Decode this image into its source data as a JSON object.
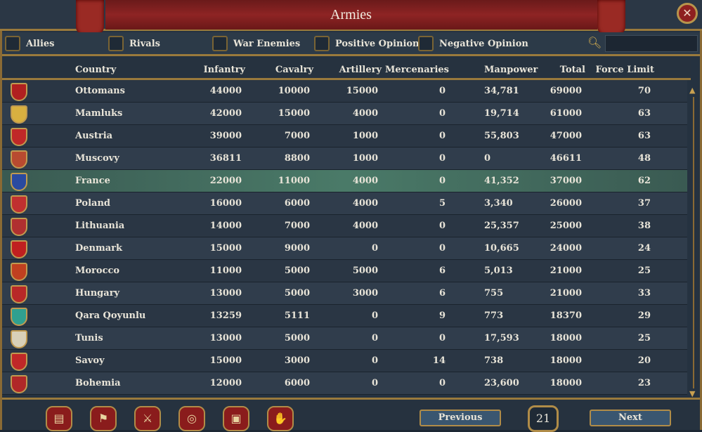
{
  "window": {
    "title": "Armies"
  },
  "filters": [
    {
      "label": "Allies"
    },
    {
      "label": "Rivals"
    },
    {
      "label": "War Enemies"
    },
    {
      "label": "Positive Opinion"
    },
    {
      "label": "Negative Opinion"
    }
  ],
  "search": {
    "value": "",
    "placeholder": ""
  },
  "columns": {
    "country": "Country",
    "infantry": "Infantry",
    "cavalry": "Cavalry",
    "artillery": "Artillery",
    "mercenaries": "Mercenaries",
    "manpower": "Manpower",
    "total": "Total",
    "force_limit": "Force Limit"
  },
  "rows": [
    {
      "country": "Ottomans",
      "infantry": "44000",
      "cavalry": "10000",
      "artillery": "15000",
      "mercenaries": "0",
      "manpower": "34,781",
      "total": "69000",
      "force_limit": "70",
      "color": "#b02020"
    },
    {
      "country": "Mamluks",
      "infantry": "42000",
      "cavalry": "15000",
      "artillery": "4000",
      "mercenaries": "0",
      "manpower": "19,714",
      "total": "61000",
      "force_limit": "63",
      "color": "#d8b040"
    },
    {
      "country": "Austria",
      "infantry": "39000",
      "cavalry": "7000",
      "artillery": "1000",
      "mercenaries": "0",
      "manpower": "55,803",
      "total": "47000",
      "force_limit": "63",
      "color": "#c02828"
    },
    {
      "country": "Muscovy",
      "infantry": "36811",
      "cavalry": "8800",
      "artillery": "1000",
      "mercenaries": "0",
      "manpower": "0",
      "total": "46611",
      "force_limit": "48",
      "color": "#b84a30"
    },
    {
      "country": "France",
      "infantry": "22000",
      "cavalry": "11000",
      "artillery": "4000",
      "mercenaries": "0",
      "manpower": "41,352",
      "total": "37000",
      "force_limit": "62",
      "color": "#2a4aa0",
      "selected": true
    },
    {
      "country": "Poland",
      "infantry": "16000",
      "cavalry": "6000",
      "artillery": "4000",
      "mercenaries": "5",
      "manpower": "3,340",
      "total": "26000",
      "force_limit": "37",
      "color": "#c03030"
    },
    {
      "country": "Lithuania",
      "infantry": "14000",
      "cavalry": "7000",
      "artillery": "4000",
      "mercenaries": "0",
      "manpower": "25,357",
      "total": "25000",
      "force_limit": "38",
      "color": "#b03030"
    },
    {
      "country": "Denmark",
      "infantry": "15000",
      "cavalry": "9000",
      "artillery": "0",
      "mercenaries": "0",
      "manpower": "10,665",
      "total": "24000",
      "force_limit": "24",
      "color": "#c02020"
    },
    {
      "country": "Morocco",
      "infantry": "11000",
      "cavalry": "5000",
      "artillery": "5000",
      "mercenaries": "6",
      "manpower": "5,013",
      "total": "21000",
      "force_limit": "25",
      "color": "#c04020"
    },
    {
      "country": "Hungary",
      "infantry": "13000",
      "cavalry": "5000",
      "artillery": "3000",
      "mercenaries": "6",
      "manpower": "755",
      "total": "21000",
      "force_limit": "33",
      "color": "#b82828"
    },
    {
      "country": "Qara Qoyunlu",
      "infantry": "13259",
      "cavalry": "5111",
      "artillery": "0",
      "mercenaries": "9",
      "manpower": "773",
      "total": "18370",
      "force_limit": "29",
      "color": "#30a090"
    },
    {
      "country": "Tunis",
      "infantry": "13000",
      "cavalry": "5000",
      "artillery": "0",
      "mercenaries": "0",
      "manpower": "17,593",
      "total": "18000",
      "force_limit": "25",
      "color": "#d8d0b8"
    },
    {
      "country": "Savoy",
      "infantry": "15000",
      "cavalry": "3000",
      "artillery": "0",
      "mercenaries": "14",
      "manpower": "738",
      "total": "18000",
      "force_limit": "20",
      "color": "#c02828"
    },
    {
      "country": "Bohemia",
      "infantry": "12000",
      "cavalry": "6000",
      "artillery": "0",
      "mercenaries": "0",
      "manpower": "23,600",
      "total": "18000",
      "force_limit": "23",
      "color": "#b02828"
    }
  ],
  "footer": {
    "previous_label": "Previous",
    "next_label": "Next",
    "page": "21",
    "buttons": [
      {
        "icon": "ledger-icon",
        "glyph": "▤"
      },
      {
        "icon": "flag-icon",
        "glyph": "⚑"
      },
      {
        "icon": "crossed-swords-icon",
        "glyph": "⚔"
      },
      {
        "icon": "coins-icon",
        "glyph": "◎"
      },
      {
        "icon": "building-icon",
        "glyph": "▣"
      },
      {
        "icon": "handshake-icon",
        "glyph": "✋"
      }
    ]
  }
}
